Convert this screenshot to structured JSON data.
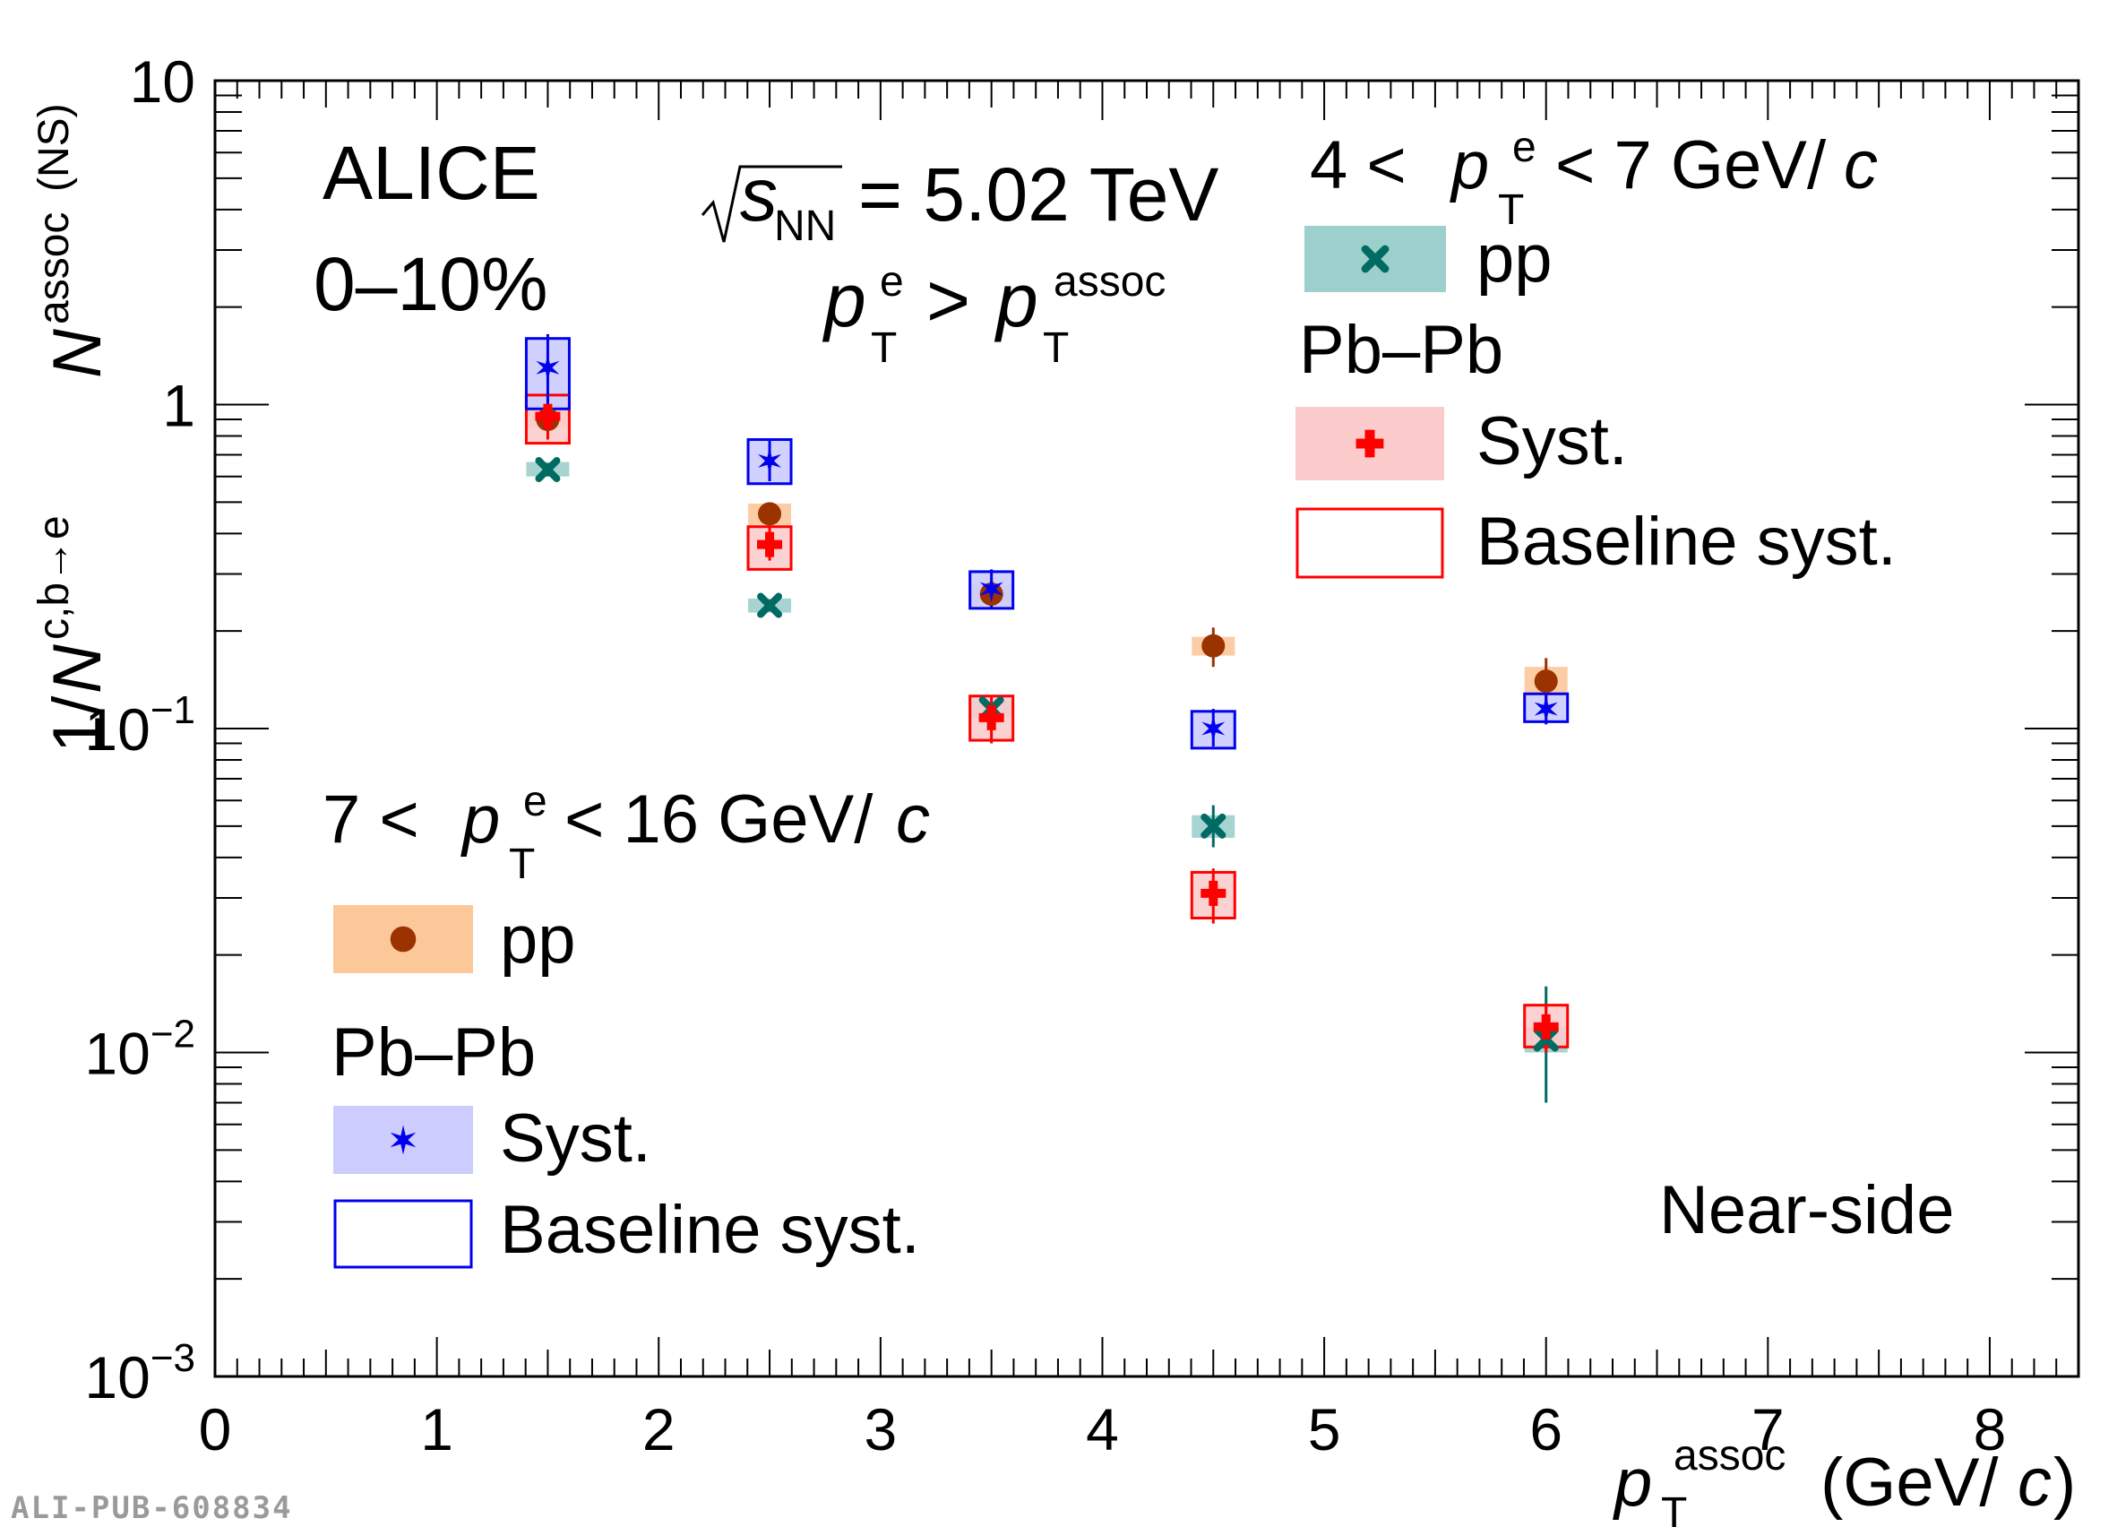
{
  "chart_data": {
    "type": "scatter",
    "experiment": "ALICE",
    "centrality": "0–10%",
    "energy": {
      "prefix": "s",
      "subscript": "NN",
      "value": "= 5.02 TeV"
    },
    "selection": {
      "a": "p",
      "a_sub": "T",
      "a_sup": "e",
      "op": ">",
      "b": "p",
      "b_sub": "T",
      "b_sup": "assoc"
    },
    "region_label": "Near-side",
    "xlabel": {
      "main": "p",
      "sub": "T",
      "sup": "assoc",
      "unit_pre": "(GeV/",
      "unit_it": "c",
      "unit_post": ")"
    },
    "ylabel": {
      "pre": "1/",
      "N": "N",
      "sup1": "c,b→e",
      "N2": "N",
      "sup2": "assoc",
      "post": "(NS)"
    },
    "xlim": [
      0,
      8.4
    ],
    "ylim": [
      0.001,
      10
    ],
    "y_scale": "log",
    "x_ticks": [
      "0",
      "1",
      "2",
      "3",
      "4",
      "5",
      "6",
      "7",
      "8"
    ],
    "y_ticks": [
      {
        "base": "10",
        "exp": "−3"
      },
      {
        "base": "10",
        "exp": "−2"
      },
      {
        "base": "10",
        "exp": "−1"
      },
      {
        "base": "1",
        "exp": ""
      },
      {
        "base": "10",
        "exp": ""
      }
    ],
    "legend_groups": [
      {
        "title": {
          "lo": "4 <",
          "p": "p",
          "sub": "T",
          "sup": "e",
          "hi": "< 7 GeV/",
          "c": "c"
        },
        "position": "top-right",
        "entries": [
          {
            "label": "pp",
            "series": "pp_4_7",
            "style": "fill"
          },
          {
            "label": "Pb–Pb",
            "series": "",
            "style": "heading"
          },
          {
            "label": "Syst.",
            "series": "pbpb_4_7",
            "style": "fill"
          },
          {
            "label": "Baseline syst.",
            "series": "pbpb_4_7",
            "style": "box"
          }
        ]
      },
      {
        "title": {
          "lo": "7 <",
          "p": "p",
          "sub": "T",
          "sup": "e",
          "hi": "< 16 GeV/",
          "c": "c"
        },
        "position": "bottom-left",
        "entries": [
          {
            "label": "pp",
            "series": "pp_7_16",
            "style": "fill"
          },
          {
            "label": "Pb–Pb",
            "series": "",
            "style": "heading"
          },
          {
            "label": "Syst.",
            "series": "pbpb_7_16",
            "style": "fill"
          },
          {
            "label": "Baseline syst.",
            "series": "pbpb_7_16",
            "style": "box"
          }
        ]
      }
    ],
    "series": [
      {
        "id": "pp_4_7",
        "name": "pp, 4 < pT^e < 7 GeV/c",
        "marker": "cross",
        "color": "#006b63",
        "syst_fill": "#9dcfcc",
        "box": false,
        "x": [
          1.5,
          2.5,
          3.5,
          4.5,
          6.0
        ],
        "y": [
          0.63,
          0.24,
          0.115,
          0.05,
          0.011
        ],
        "err_lo": [
          0.6,
          0.23,
          0.11,
          0.043,
          0.007
        ],
        "err_hi": [
          0.66,
          0.25,
          0.12,
          0.058,
          0.016
        ],
        "syst_lo": [
          0.6,
          0.228,
          0.108,
          0.046,
          0.01
        ],
        "syst_hi": [
          0.665,
          0.252,
          0.122,
          0.054,
          0.012
        ]
      },
      {
        "id": "pp_7_16",
        "name": "pp, 7 < pT^e < 16 GeV/c",
        "marker": "circle",
        "color": "#9a3300",
        "syst_fill": "#fcc89a",
        "box": false,
        "x": [
          1.5,
          2.5,
          3.5,
          4.5,
          6.0
        ],
        "y": [
          0.9,
          0.46,
          0.26,
          0.18,
          0.14
        ],
        "err_lo": [
          0.85,
          0.43,
          0.24,
          0.155,
          0.12
        ],
        "err_hi": [
          0.97,
          0.49,
          0.28,
          0.205,
          0.165
        ],
        "syst_lo": [
          0.85,
          0.425,
          0.245,
          0.168,
          0.128
        ],
        "syst_hi": [
          0.96,
          0.495,
          0.278,
          0.192,
          0.155
        ]
      },
      {
        "id": "pbpb_4_7",
        "name": "Pb–Pb, 4 < pT^e < 7 GeV/c",
        "marker": "cross-bold",
        "color": "#ff0000",
        "syst_fill": "#fccccc",
        "box": true,
        "x": [
          1.5,
          2.5,
          3.5,
          4.5,
          6.0
        ],
        "y": [
          0.92,
          0.37,
          0.108,
          0.031,
          0.012
        ],
        "err_lo": [
          0.78,
          0.33,
          0.09,
          0.025,
          0.01
        ],
        "err_hi": [
          1.08,
          0.42,
          0.125,
          0.037,
          0.014
        ],
        "syst_lo": [
          0.76,
          0.31,
          0.092,
          0.026,
          0.0104
        ],
        "syst_hi": [
          1.07,
          0.42,
          0.126,
          0.036,
          0.014
        ]
      },
      {
        "id": "pbpb_7_16",
        "name": "Pb–Pb, 7 < pT^e < 16 GeV/c",
        "marker": "star",
        "color": "#0000ee",
        "syst_fill": "#ccccff",
        "box": true,
        "x": [
          1.5,
          2.5,
          3.5,
          4.5,
          6.0
        ],
        "y": [
          1.3,
          0.67,
          0.27,
          0.1,
          0.115
        ],
        "err_lo": [
          0.98,
          0.58,
          0.235,
          0.088,
          0.103
        ],
        "err_hi": [
          1.65,
          0.78,
          0.31,
          0.115,
          0.128
        ],
        "syst_lo": [
          0.97,
          0.57,
          0.235,
          0.087,
          0.105
        ],
        "syst_hi": [
          1.6,
          0.78,
          0.305,
          0.113,
          0.128
        ]
      }
    ]
  },
  "footer_id": "ALI-PUB-608834"
}
